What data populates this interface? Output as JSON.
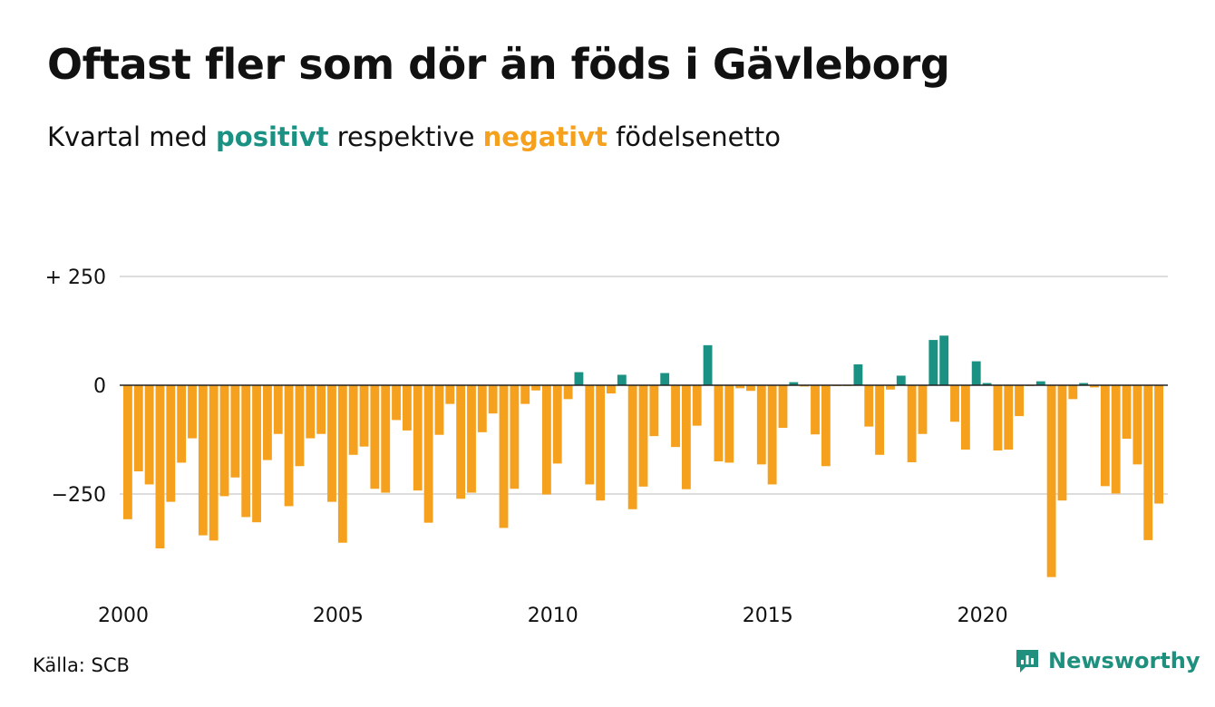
{
  "header": {
    "title": "Oftast fler som dör än föds i Gävleborg",
    "subtitle_before": "Kvartal med",
    "subtitle_positive": "positivt",
    "subtitle_middle": "respektive",
    "subtitle_negative": "negativt",
    "subtitle_after": "födelsenetto"
  },
  "footer": {
    "source": "Källa: SCB",
    "brand": "Newsworthy"
  },
  "colors": {
    "positive": "#1a9182",
    "negative": "#f5a11d",
    "grid": "#dddddd",
    "zero_line": "#222222"
  },
  "chart_data": {
    "type": "bar",
    "title": "Oftast fler som dör än föds i Gävleborg",
    "subtitle": "Kvartal med positivt respektive negativt födelsenetto",
    "x_start": "2000 Q1",
    "x_ticks": [
      {
        "label": "2000",
        "index": 0
      },
      {
        "label": "2005",
        "index": 20
      },
      {
        "label": "2010",
        "index": 40
      },
      {
        "label": "2015",
        "index": 60
      },
      {
        "label": "2020",
        "index": 80
      }
    ],
    "y_ticks": [
      {
        "value": 250,
        "label": "+ 250"
      },
      {
        "value": 0,
        "label": "0"
      },
      {
        "value": -250,
        "label": "−250"
      }
    ],
    "ylim": [
      -450,
      260
    ],
    "grid": true,
    "values": [
      -308,
      -198,
      -228,
      -375,
      -268,
      -178,
      -122,
      -345,
      -357,
      -255,
      -212,
      -303,
      -315,
      -172,
      -112,
      -278,
      -186,
      -122,
      -112,
      -268,
      -362,
      -160,
      -141,
      -238,
      -247,
      -80,
      -104,
      -242,
      -316,
      -114,
      -43,
      -261,
      -247,
      -108,
      -65,
      -328,
      -238,
      -43,
      -12,
      -251,
      -180,
      -32,
      30,
      -228,
      -265,
      -19,
      24,
      -285,
      -233,
      -117,
      28,
      -142,
      -239,
      -93,
      92,
      -175,
      -178,
      -7,
      -13,
      -182,
      -228,
      -98,
      7,
      -3,
      -113,
      -186,
      -2,
      -2,
      48,
      -95,
      -160,
      -10,
      22,
      -177,
      -112,
      104,
      114,
      -84,
      -148,
      55,
      5,
      -150,
      -148,
      -71,
      -2,
      9,
      -441,
      -265,
      -32,
      5,
      -5,
      -232,
      -249,
      -123,
      -182,
      -356,
      -272
    ]
  }
}
